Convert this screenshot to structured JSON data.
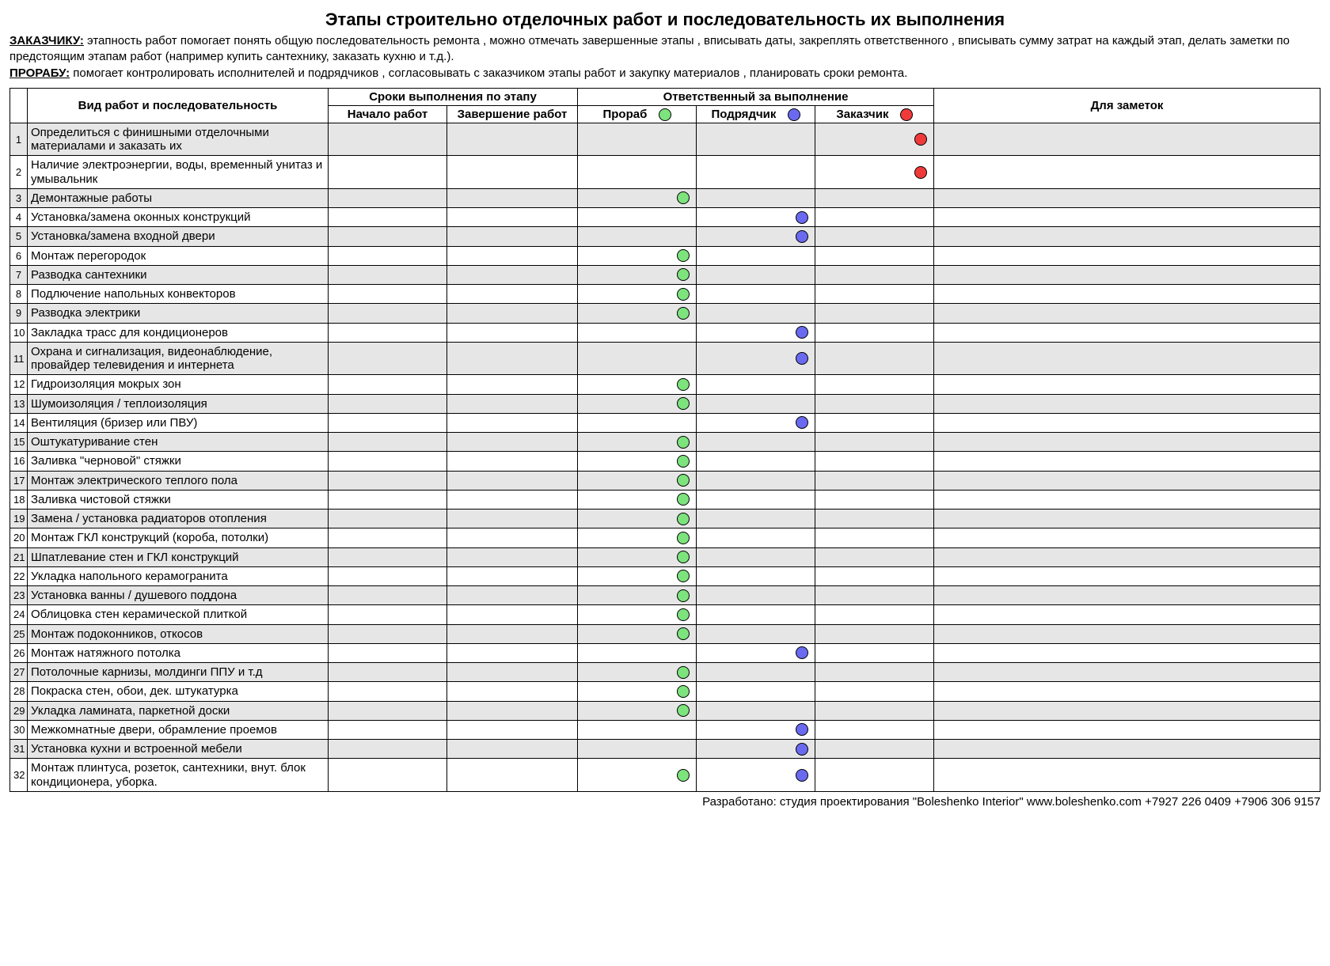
{
  "title": "Этапы строительно отделочных работ и последовательность их выполнения",
  "intro": {
    "customer_label": "ЗАКАЗЧИКУ:",
    "customer_text": " этапность работ помогает понять общую последовательность ремонта , можно отмечать завершенные этапы , вписывать даты, закреплять ответственного , вписывать сумму затрат на каждый этап, делать заметки по предстоящим этапам работ (например купить сантехнику, заказать кухню и т.д.).",
    "foreman_label": "ПРОРАБУ:",
    "foreman_text": " помогает контролировать исполнителей и подрядчиков , согласовывать с заказчиком этапы работ и закупку материалов , планировать сроки ремонта."
  },
  "headers": {
    "work": "Вид работ и последовательность",
    "timing": "Сроки выполнения по этапу",
    "start": "Начало работ",
    "end": "Завершение работ",
    "responsible": "Ответственный за выполнение",
    "foreman": "Прораб",
    "contractor": "Подрядчик",
    "customer": "Заказчик",
    "notes": "Для заметок"
  },
  "colors": {
    "foreman": "#7de37d",
    "contractor": "#6a6af0",
    "customer": "#f03a3a",
    "grey": "#e6e6e6",
    "white": "#ffffff"
  },
  "rows": [
    {
      "n": 1,
      "work": "Определиться с финишными отделочными материалами и заказать их",
      "resp": "customer",
      "tall": true
    },
    {
      "n": 2,
      "work": "Наличие электроэнергии, воды, временный унитаз и умывальник",
      "resp": "customer",
      "tall": true
    },
    {
      "n": 3,
      "work": "Демонтажные работы",
      "resp": "foreman"
    },
    {
      "n": 4,
      "work": "Установка/замена оконных конструкций",
      "resp": "contractor"
    },
    {
      "n": 5,
      "work": "Установка/замена входной двери",
      "resp": "contractor"
    },
    {
      "n": 6,
      "work": "Монтаж перегородок",
      "resp": "foreman"
    },
    {
      "n": 7,
      "work": "Разводка сантехники",
      "resp": "foreman"
    },
    {
      "n": 8,
      "work": "Подлючение напольных конвекторов",
      "resp": "foreman"
    },
    {
      "n": 9,
      "work": "Разводка электрики",
      "resp": "foreman"
    },
    {
      "n": 10,
      "work": "Закладка трасс для кондиционеров",
      "resp": "contractor"
    },
    {
      "n": 11,
      "work": "Охрана и сигнализация, видеонаблюдение, провайдер телевидения и интернета",
      "resp": "contractor",
      "tall": true
    },
    {
      "n": 12,
      "work": "Гидроизоляция мокрых зон",
      "resp": "foreman"
    },
    {
      "n": 13,
      "work": "Шумоизоляция / теплоизоляция",
      "resp": "foreman"
    },
    {
      "n": 14,
      "work": "Вентиляция (бризер или ПВУ)",
      "resp": "contractor"
    },
    {
      "n": 15,
      "work": "Оштукатуривание стен",
      "resp": "foreman"
    },
    {
      "n": 16,
      "work": "Заливка \"черновой\" стяжки",
      "resp": "foreman"
    },
    {
      "n": 17,
      "work": "Монтаж электрического теплого пола",
      "resp": "foreman"
    },
    {
      "n": 18,
      "work": "Заливка чистовой стяжки",
      "resp": "foreman"
    },
    {
      "n": 19,
      "work": "Замена / установка радиаторов отопления",
      "resp": "foreman"
    },
    {
      "n": 20,
      "work": "Монтаж ГКЛ конструкций (короба, потолки)",
      "resp": "foreman"
    },
    {
      "n": 21,
      "work": "Шпатлевание стен и ГКЛ конструкций",
      "resp": "foreman"
    },
    {
      "n": 22,
      "work": "Укладка напольного керамогранита",
      "resp": "foreman"
    },
    {
      "n": 23,
      "work": "Установка ванны / душевого поддона",
      "resp": "foreman"
    },
    {
      "n": 24,
      "work": "Облицовка стен керамической плиткой",
      "resp": "foreman"
    },
    {
      "n": 25,
      "work": "Монтаж подоконников, откосов",
      "resp": "foreman"
    },
    {
      "n": 26,
      "work": "Монтаж натяжного потолка",
      "resp": "contractor"
    },
    {
      "n": 27,
      "work": "Потолочные карнизы, молдинги ППУ и т.д",
      "resp": "foreman"
    },
    {
      "n": 28,
      "work": "Покраска стен, обои, дек. штукатурка",
      "resp": "foreman"
    },
    {
      "n": 29,
      "work": "Укладка ламината, паркетной доски",
      "resp": "foreman"
    },
    {
      "n": 30,
      "work": "Межкомнатные двери, обрамление проемов",
      "resp": "contractor"
    },
    {
      "n": 31,
      "work": "Установка кухни и встроенной мебели",
      "resp": "contractor"
    },
    {
      "n": 32,
      "work": "Монтаж плинтуса, розеток, сантехники, внут. блок кондиционера, уборка.",
      "resp": [
        "foreman",
        "contractor"
      ],
      "tall": true
    }
  ],
  "footer": "Разработано: студия проектирования \"Boleshenko Interior\" www.boleshenko.com   +7927 226 0409   +7906 306 9157"
}
